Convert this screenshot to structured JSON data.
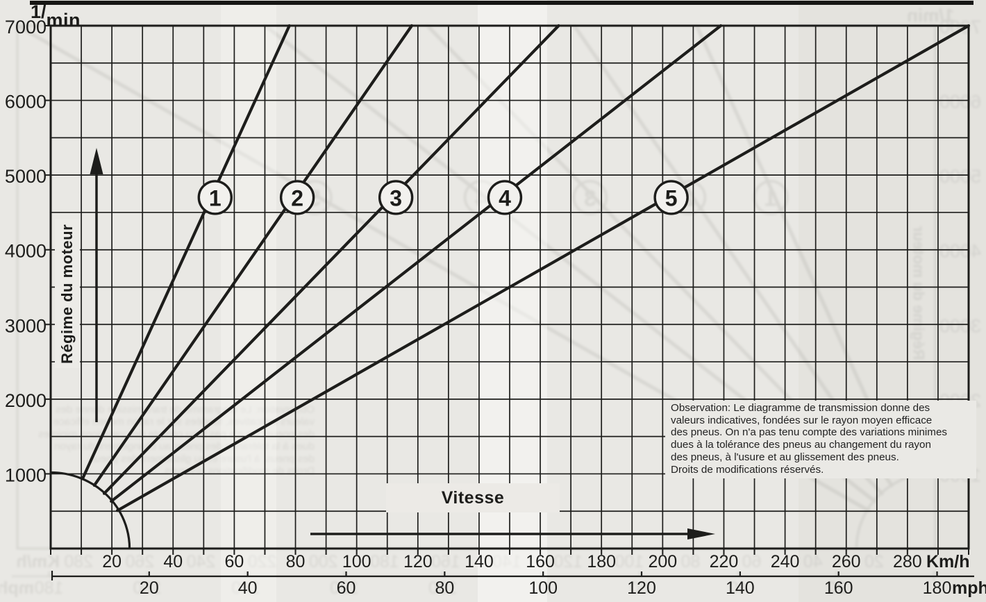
{
  "labels": {
    "y_unit_sup": "1/",
    "y_unit_main": "min",
    "y_axis": "Régime du moteur",
    "x_axis": "Vitesse",
    "kmh_unit": "Km/h",
    "mph_unit": "mph"
  },
  "observation": {
    "lines": [
      "Observation: Le diagramme de transmission donne des",
      "valeurs indicatives, fondées sur le rayon moyen efficace",
      "des pneus. On n'a pas tenu compte des variations minimes",
      "dues à la tolérance des pneus au changement du rayon",
      "des pneus, à l'usure et au glissement des pneus.",
      "Droits de modifications réservés."
    ]
  },
  "colors": {
    "ink": "#1d1d1b",
    "ghost_ink": "#85847d",
    "paper": "#e9e8e4",
    "circle_fill": "#f2f1ee"
  },
  "chart_data": {
    "type": "line",
    "title": "",
    "ylabel": "Régime du moteur",
    "y_unit": "1/min",
    "xlabel": "Vitesse",
    "x_unit_primary": "Km/h",
    "x_unit_secondary": "mph",
    "ylim": [
      0,
      7000
    ],
    "xlim_kmh": [
      0,
      300
    ],
    "y_ticks": [
      1000,
      2000,
      3000,
      4000,
      5000,
      6000,
      7000
    ],
    "x_ticks_kmh": [
      20,
      40,
      60,
      80,
      100,
      120,
      140,
      160,
      180,
      200,
      220,
      240,
      260,
      280
    ],
    "x_ticks_mph": [
      20,
      40,
      60,
      80,
      100,
      120,
      140,
      160,
      180
    ],
    "mph_to_kmh": 1.60934,
    "grid": {
      "x_step_kmh": 10,
      "y_step_rpm": 500,
      "on": true
    },
    "start_arc_rpm": 1000,
    "gear_label_rpm": 4700,
    "legend": "circled gear numbers placed on each line",
    "series": [
      {
        "name": "1",
        "points_kmh_rpm": [
          [
            12,
            1000
          ],
          [
            78,
            7000
          ]
        ],
        "kmh_at_7000": 78
      },
      {
        "name": "2",
        "points_kmh_rpm": [
          [
            18,
            1000
          ],
          [
            118,
            7000
          ]
        ],
        "kmh_at_7000": 118
      },
      {
        "name": "3",
        "points_kmh_rpm": [
          [
            24,
            1000
          ],
          [
            166,
            7000
          ]
        ],
        "kmh_at_7000": 166
      },
      {
        "name": "4",
        "points_kmh_rpm": [
          [
            26,
            800
          ],
          [
            219,
            7000
          ]
        ],
        "kmh_at_7000": 219
      },
      {
        "name": "5",
        "points_kmh_rpm": [
          [
            27,
            600
          ],
          [
            300,
            7000
          ]
        ],
        "kmh_at_7000": 300
      }
    ]
  }
}
